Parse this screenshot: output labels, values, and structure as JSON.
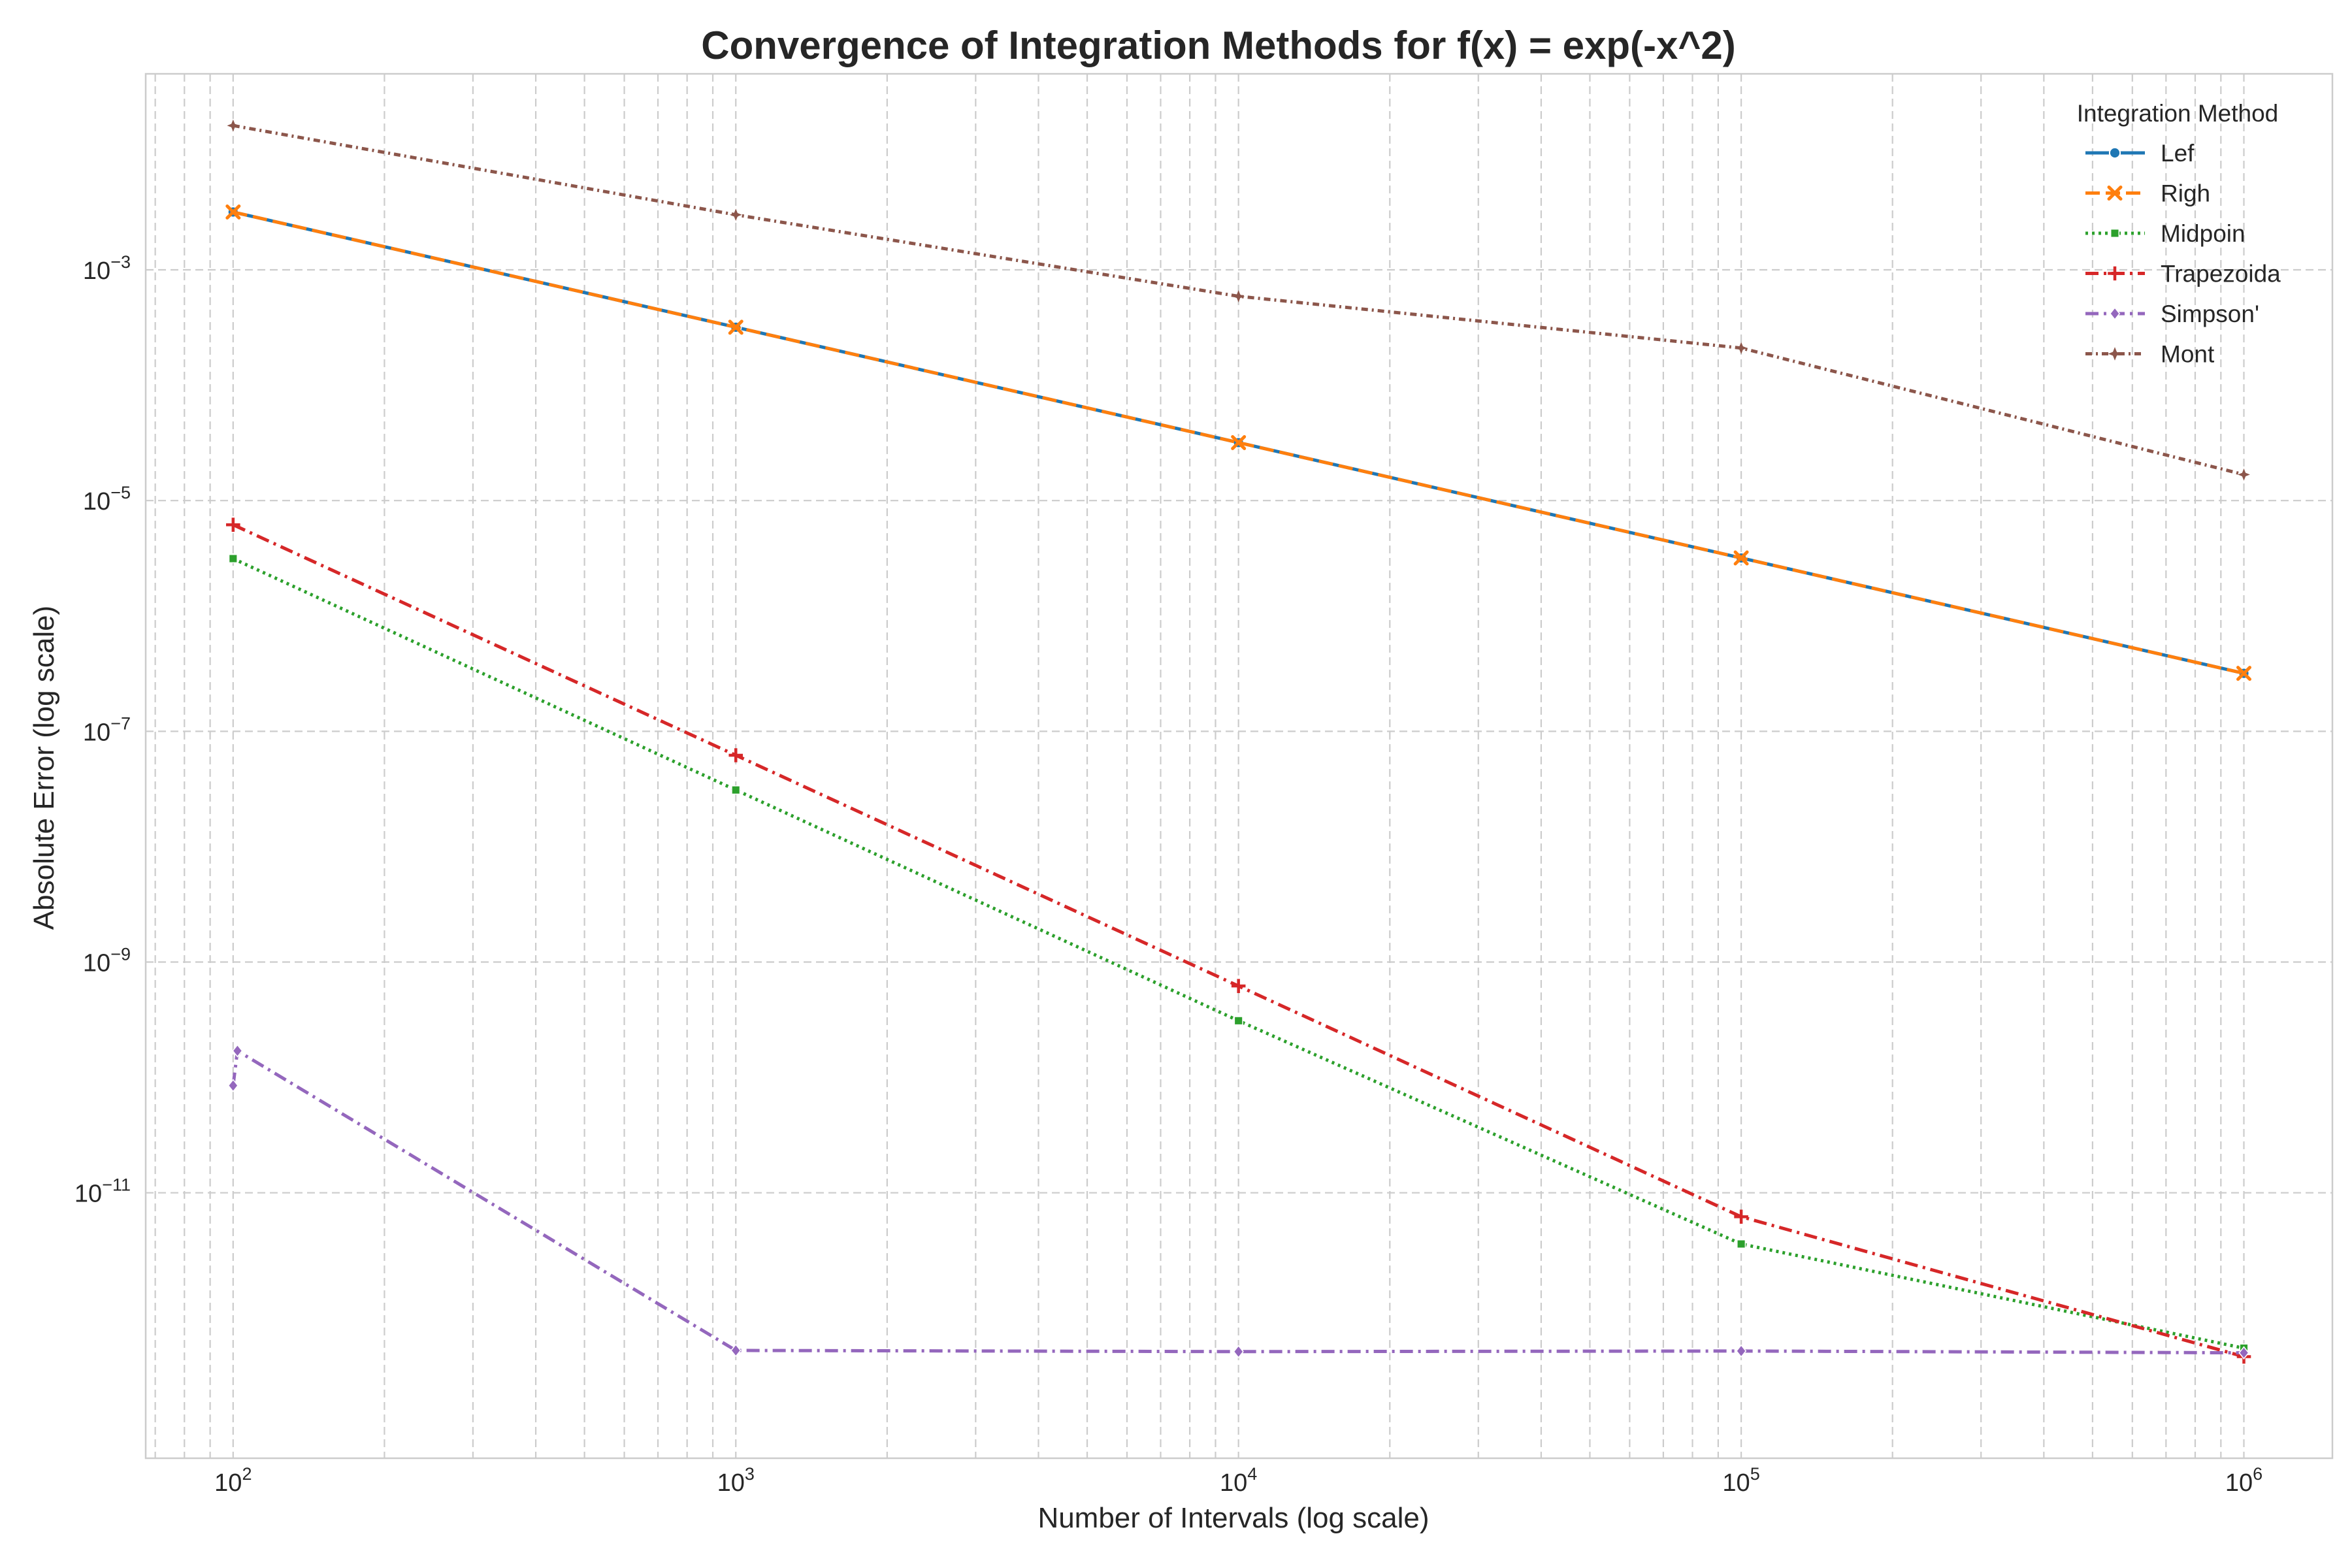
{
  "chart_data": {
    "type": "line",
    "title": "Convergence of Integration Methods for f(x) = exp(-x^2)",
    "xlabel": "Number of Intervals (log scale)",
    "ylabel": "Absolute Error (log scale)",
    "xscale": "log",
    "yscale": "log",
    "xlim": [
      67,
      1500000
    ],
    "ylim": [
      5e-14,
      0.05
    ],
    "x_ticks": [
      {
        "base": "10",
        "exp": "2",
        "value": 100
      },
      {
        "base": "10",
        "exp": "3",
        "value": 1000
      },
      {
        "base": "10",
        "exp": "4",
        "value": 10000
      },
      {
        "base": "10",
        "exp": "5",
        "value": 100000
      },
      {
        "base": "10",
        "exp": "6",
        "value": 1000000
      }
    ],
    "y_ticks": [
      {
        "base": "10",
        "exp": "−3",
        "value": 0.001
      },
      {
        "base": "10",
        "exp": "−5",
        "value": 1e-05
      },
      {
        "base": "10",
        "exp": "−7",
        "value": 1e-07
      },
      {
        "base": "10",
        "exp": "−9",
        "value": 1e-09
      },
      {
        "base": "10",
        "exp": "−11",
        "value": 1e-11
      }
    ],
    "grid": true,
    "legend": {
      "title": "Integration Method",
      "placement": "top-right"
    },
    "series": [
      {
        "name": "Lef",
        "color": "#1f77b4",
        "dash": "solid",
        "marker": "circle",
        "x": [
          100,
          1000,
          10000,
          100000,
          1000000
        ],
        "y": [
          0.00317,
          0.000318,
          3.18e-05,
          3.18e-06,
          3.18e-07
        ]
      },
      {
        "name": "Righ",
        "color": "#ff7f0e",
        "dash": "dashed",
        "marker": "x",
        "x": [
          100,
          1000,
          10000,
          100000,
          1000000
        ],
        "y": [
          0.00317,
          0.000318,
          3.18e-05,
          3.18e-06,
          3.18e-07
        ]
      },
      {
        "name": "Midpoin",
        "color": "#2ca02c",
        "dash": "dotted",
        "marker": "square",
        "x": [
          100,
          1000,
          10000,
          100000,
          1000000
        ],
        "y": [
          3.14e-06,
          3.1e-08,
          3.1e-10,
          3.6e-12,
          4.5e-13
        ]
      },
      {
        "name": "Trapezoida",
        "color": "#d62728",
        "dash": "dashdot",
        "marker": "plus",
        "x": [
          100,
          1000,
          10000,
          100000,
          1000000
        ],
        "y": [
          6.17e-06,
          6.2e-08,
          6.2e-10,
          6.2e-12,
          3.8e-13
        ]
      },
      {
        "name": "Simpson'",
        "color": "#9467bd",
        "dash": "dashdot",
        "marker": "diamond",
        "x": [
          100,
          102,
          1000,
          10000,
          100000,
          1000000
        ],
        "y": [
          8.5e-11,
          1.7e-10,
          4.3e-13,
          4.2e-13,
          4.25e-13,
          4.1e-13
        ]
      },
      {
        "name": "Mont",
        "color": "#8c564b",
        "dash": "densedashdot",
        "marker": "star",
        "x": [
          100,
          1000,
          10000,
          100000,
          1000000
        ],
        "y": [
          0.0178,
          0.003,
          0.00059,
          0.00021,
          1.68e-05
        ]
      }
    ]
  }
}
